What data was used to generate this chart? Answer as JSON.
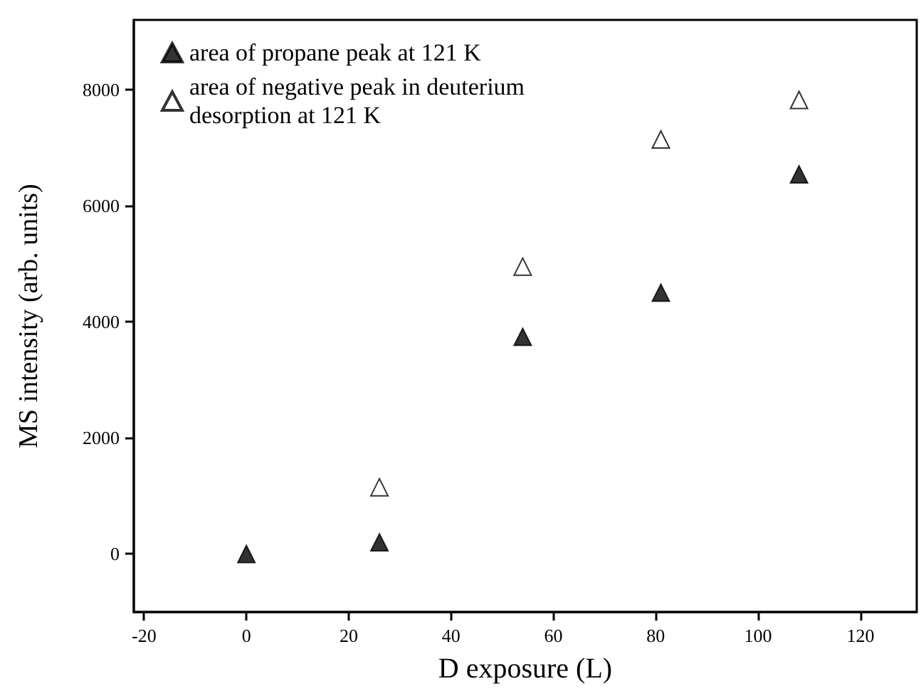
{
  "chart_data": {
    "type": "scatter",
    "xlabel": "D exposure (L)",
    "ylabel": "MS intensity (arb. units)",
    "x": [
      0,
      26,
      54,
      81,
      108
    ],
    "series": [
      {
        "name": "area of propane peak at 121 K",
        "color": "#000000",
        "values": [
          0,
          200,
          3740,
          4500,
          6540
        ]
      },
      {
        "name": "area of negative peak in deuterium desorption at 121 K",
        "color": "#ffffff",
        "values": [
          null,
          1150,
          4950,
          7140,
          7820
        ]
      }
    ],
    "xlim": [
      -22,
      131
    ],
    "xticks": [
      -20,
      0,
      20,
      40,
      60,
      80,
      100,
      120
    ],
    "ylim": [
      -1000,
      9200
    ],
    "yticks": [
      0,
      2000,
      4000,
      6000,
      8000
    ],
    "marker": "triangle",
    "legend": "top left",
    "grid": false
  }
}
